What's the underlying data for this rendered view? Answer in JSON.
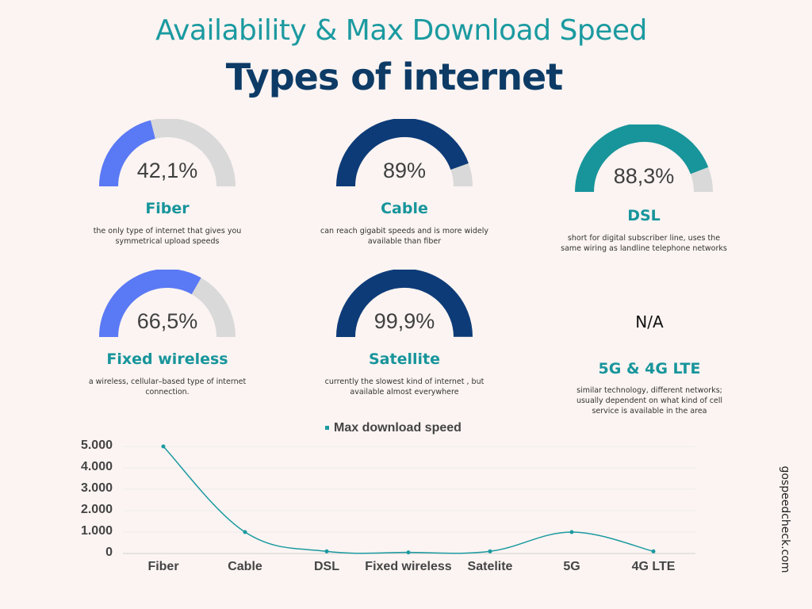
{
  "header": {
    "subtitle": "Availability & Max Download Speed",
    "title": "Types of internet"
  },
  "colors": {
    "fiber_arc": "#5a79f5",
    "cable_arc": "#0d3b78",
    "dsl_arc": "#17959b",
    "track": "#d9d9d9",
    "line": "#1b9aa0"
  },
  "cards": [
    {
      "name": "Fiber",
      "value_label": "42,1%",
      "fraction": 0.421,
      "desc": "the only type of internet that gives you symmetrical upload speeds"
    },
    {
      "name": "Cable",
      "value_label": "89%",
      "fraction": 0.89,
      "desc": "can reach gigabit speeds and is more widely available than fiber"
    },
    {
      "name": "DSL",
      "value_label": "88,3%",
      "fraction": 0.883,
      "desc": "short for digital subscriber line, uses the same wiring as landline telephone networks"
    },
    {
      "name": "Fixed wireless",
      "value_label": "66,5%",
      "fraction": 0.665,
      "desc": "a wireless, cellular–based type of internet connection."
    },
    {
      "name": "Satellite",
      "value_label": "99,9%",
      "fraction": 0.999,
      "desc": "currently the slowest kind of internet , but available almost everywhere"
    },
    {
      "name": "5G & 4G LTE",
      "value_label": "N/A",
      "desc": "similar technology, different networks; usually dependent on what kind of cell service is available in the area"
    }
  ],
  "chart_data": {
    "type": "line",
    "categories": [
      "Fiber",
      "Cable",
      "DSL",
      "Fixed wireless",
      "Satelite",
      "5G",
      "4G LTE"
    ],
    "series": [
      {
        "name": "Max download speed",
        "values": [
          5000,
          1000,
          100,
          50,
          100,
          1000,
          100
        ]
      }
    ],
    "ylim": [
      0,
      5000
    ],
    "yticks": [
      "0",
      "1.000",
      "2.000",
      "3.000",
      "4.000",
      "5.000"
    ],
    "legend": "top-center",
    "grid": true
  },
  "footer": {
    "site": "gospeedcheck.com"
  }
}
